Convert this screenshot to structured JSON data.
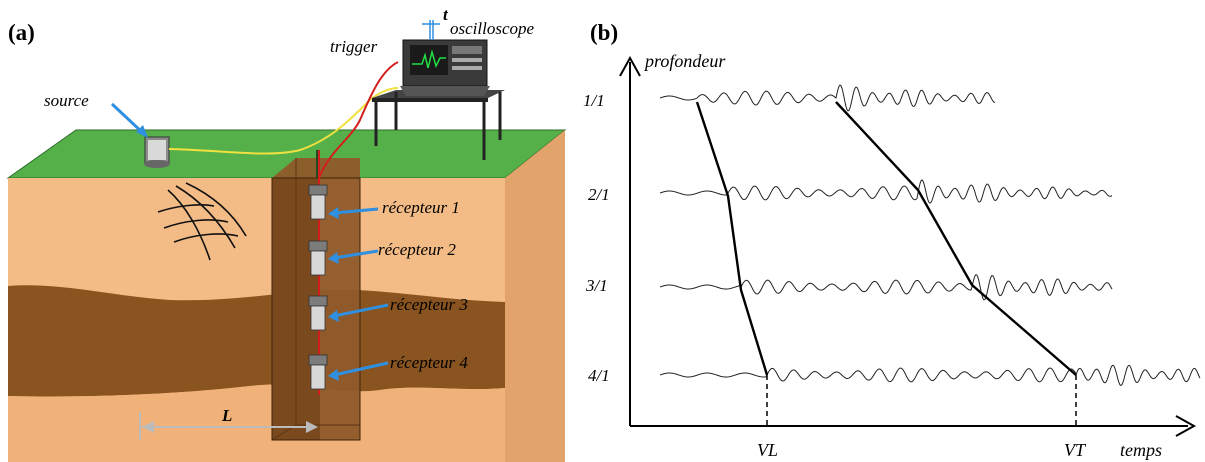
{
  "panel_a": {
    "label": "(a)",
    "source_label": "source",
    "trigger_label": "trigger",
    "oscilloscope_label": "oscilloscope",
    "t_label": "t",
    "distance_label": "L",
    "receivers": [
      "récepteur 1",
      "récepteur 2",
      "récepteur 3",
      "récepteur 4"
    ]
  },
  "panel_b": {
    "label": "(b)",
    "y_axis_label": "profondeur",
    "x_axis_label": "temps",
    "depth_labels": [
      "1/1",
      "2/1",
      "3/1",
      "4/1"
    ],
    "marker_vl": "VL",
    "marker_vt": "VT"
  }
}
